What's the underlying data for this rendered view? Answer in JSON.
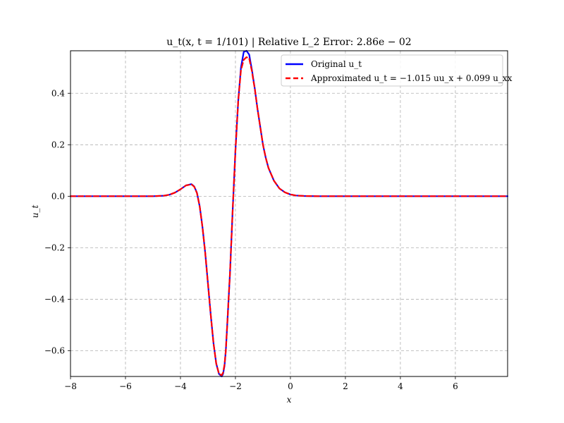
{
  "chart_data": {
    "type": "line",
    "title": "u_t(x, t = 1/101) | Relative L_2 Error:  2.86e − 02",
    "xlabel": "x",
    "ylabel": "u_t",
    "xlim": [
      -8,
      7.9
    ],
    "ylim": [
      -0.7,
      0.565
    ],
    "grid": true,
    "legend_position": "top-right",
    "x_ticks": [
      -8,
      -6,
      -4,
      -2,
      0,
      2,
      4,
      6
    ],
    "x_tick_labels": [
      "−8",
      "−6",
      "−4",
      "−2",
      "0",
      "2",
      "4",
      "6"
    ],
    "y_ticks": [
      -0.6,
      -0.4,
      -0.2,
      0.0,
      0.2,
      0.4
    ],
    "y_tick_labels": [
      "−0.6",
      "−0.4",
      "−0.2",
      "0.0",
      "0.2",
      "0.4"
    ],
    "series": [
      {
        "name": "Original u_t",
        "color": "#0000ff",
        "style": "solid",
        "x": [
          -8.0,
          -6.0,
          -5.0,
          -4.6,
          -4.4,
          -4.2,
          -4.0,
          -3.8,
          -3.6,
          -3.5,
          -3.4,
          -3.3,
          -3.2,
          -3.1,
          -3.0,
          -2.9,
          -2.8,
          -2.7,
          -2.6,
          -2.5,
          -2.45,
          -2.4,
          -2.35,
          -2.3,
          -2.2,
          -2.1,
          -2.0,
          -1.9,
          -1.8,
          -1.7,
          -1.6,
          -1.5,
          -1.45,
          -1.4,
          -1.35,
          -1.3,
          -1.2,
          -1.1,
          -1.0,
          -0.9,
          -0.8,
          -0.6,
          -0.4,
          -0.2,
          0.0,
          0.2,
          0.5,
          1.0,
          2.0,
          4.0,
          6.0,
          7.9
        ],
        "y": [
          0.0,
          0.0,
          0.0,
          0.002,
          0.006,
          0.014,
          0.027,
          0.042,
          0.047,
          0.038,
          0.013,
          -0.04,
          -0.12,
          -0.22,
          -0.34,
          -0.46,
          -0.57,
          -0.65,
          -0.69,
          -0.7,
          -0.69,
          -0.66,
          -0.6,
          -0.5,
          -0.3,
          -0.05,
          0.18,
          0.37,
          0.5,
          0.56,
          0.565,
          0.55,
          0.52,
          0.49,
          0.455,
          0.42,
          0.34,
          0.27,
          0.2,
          0.15,
          0.11,
          0.06,
          0.03,
          0.015,
          0.007,
          0.003,
          0.001,
          0.0,
          0.0,
          0.0,
          0.0,
          0.0
        ]
      },
      {
        "name": "Approximated u_t = −1.015 uu_x + 0.099 u_xx",
        "color": "#ff0000",
        "style": "dashed",
        "x": [
          -8.0,
          -6.0,
          -5.0,
          -4.6,
          -4.4,
          -4.2,
          -4.0,
          -3.8,
          -3.6,
          -3.5,
          -3.4,
          -3.3,
          -3.2,
          -3.1,
          -3.0,
          -2.9,
          -2.8,
          -2.7,
          -2.6,
          -2.5,
          -2.45,
          -2.4,
          -2.35,
          -2.3,
          -2.2,
          -2.1,
          -2.0,
          -1.9,
          -1.8,
          -1.7,
          -1.6,
          -1.5,
          -1.45,
          -1.4,
          -1.35,
          -1.3,
          -1.2,
          -1.1,
          -1.0,
          -0.9,
          -0.8,
          -0.6,
          -0.4,
          -0.2,
          0.0,
          0.2,
          0.5,
          1.0,
          2.0,
          4.0,
          6.0,
          7.9
        ],
        "y": [
          0.0,
          0.0,
          0.0,
          0.002,
          0.006,
          0.014,
          0.027,
          0.042,
          0.046,
          0.037,
          0.012,
          -0.04,
          -0.12,
          -0.22,
          -0.34,
          -0.46,
          -0.57,
          -0.65,
          -0.69,
          -0.695,
          -0.685,
          -0.655,
          -0.6,
          -0.5,
          -0.3,
          -0.05,
          0.18,
          0.37,
          0.49,
          0.53,
          0.54,
          0.535,
          0.51,
          0.485,
          0.45,
          0.42,
          0.34,
          0.27,
          0.2,
          0.15,
          0.11,
          0.06,
          0.03,
          0.015,
          0.007,
          0.003,
          0.001,
          0.0,
          0.0,
          0.0,
          0.0,
          0.0
        ]
      }
    ]
  }
}
